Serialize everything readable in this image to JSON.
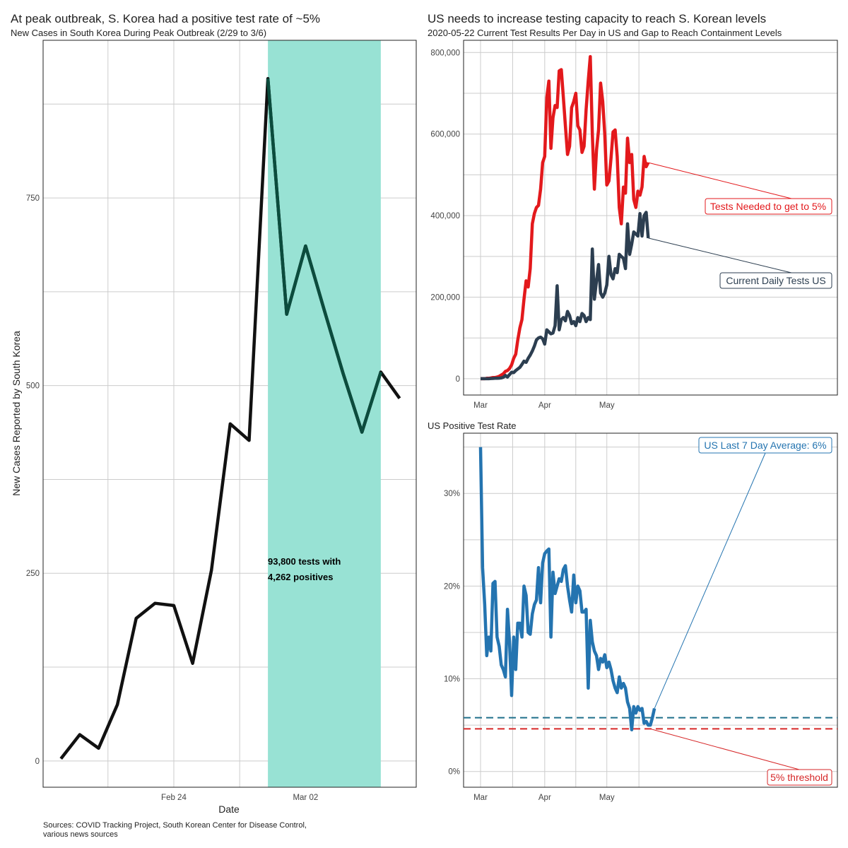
{
  "left": {
    "title": "At peak outbreak, S. Korea had a positive test rate of ~5%",
    "subtitle": "New Cases in South Korea During Peak Outbreak (2/29 to 3/6)",
    "xlabel": "Date",
    "ylabel": "New Cases Reported by South Korea",
    "annotation_line1": "93,800 tests with",
    "annotation_line2": "4,262 positives",
    "caption_line1": "Sources: COVID Tracking Project, South Korean Center for Disease Control,",
    "caption_line2": "various news sources",
    "highlight_color": "#98e2d4"
  },
  "top_right": {
    "title": "US needs to increase testing capacity to reach S. Korean levels",
    "subtitle": "2020-05-22 Current Test Results Per Day in US and Gap to Reach Containment Levels",
    "label_needed": "Tests Needed to get to 5%",
    "label_current": "Current Daily Tests US",
    "color_needed": "#e3191c",
    "color_current": "#2c3e50"
  },
  "bottom_right": {
    "title": "US Positive Test Rate",
    "label_avg": "US Last 7 Day Average: 6%",
    "label_threshold": "5% threshold",
    "color_rate": "#2474b0",
    "color_threshold": "#d62728"
  },
  "chart_data": [
    {
      "type": "line",
      "x": [
        "2020-02-18",
        "2020-02-19",
        "2020-02-20",
        "2020-02-21",
        "2020-02-22",
        "2020-02-23",
        "2020-02-24",
        "2020-02-25",
        "2020-02-26",
        "2020-02-27",
        "2020-02-28",
        "2020-02-29",
        "2020-03-01",
        "2020-03-02",
        "2020-03-03",
        "2020-03-04",
        "2020-03-05",
        "2020-03-06",
        "2020-03-07"
      ],
      "values": [
        3,
        35,
        17,
        75,
        190,
        210,
        207,
        130,
        254,
        449,
        427,
        909,
        595,
        686,
        600,
        516,
        438,
        518,
        483
      ],
      "ylim": [
        -35,
        960
      ],
      "yticks": [
        0,
        250,
        500,
        750
      ],
      "xticks": [
        "Feb 24",
        "Mar 02"
      ],
      "highlight": [
        "2020-02-29",
        "2020-03-06"
      ]
    },
    {
      "type": "line",
      "x_start": "2020-03-01",
      "x_end": "2020-05-22",
      "xticks": [
        "Mar",
        "Apr",
        "May"
      ],
      "yticks": [
        "0",
        "200,000",
        "400,000",
        "600,000",
        "800,000"
      ],
      "ylim": [
        -40000,
        830000
      ],
      "series": [
        {
          "name": "Tests Needed to get to 5%",
          "values": [
            0,
            0,
            0,
            1000,
            1000,
            2000,
            3000,
            3000,
            4000,
            6000,
            9000,
            12000,
            18000,
            20000,
            25000,
            34000,
            50000,
            60000,
            95000,
            125000,
            145000,
            195000,
            240000,
            225000,
            270000,
            380000,
            405000,
            420000,
            425000,
            465000,
            530000,
            545000,
            690000,
            730000,
            565000,
            640000,
            670000,
            665000,
            755000,
            758000,
            690000,
            620000,
            550000,
            570000,
            665000,
            680000,
            700000,
            620000,
            610000,
            555000,
            570000,
            660000,
            730000,
            790000,
            600000,
            465000,
            560000,
            610000,
            725000,
            680000,
            600000,
            475000,
            485000,
            540000,
            605000,
            610000,
            545000,
            420000,
            380000,
            470000,
            455000,
            590000,
            530000,
            550000,
            440000,
            420000,
            460000,
            450000,
            470000,
            545000,
            520000,
            530000
          ]
        },
        {
          "name": "Current Daily Tests US",
          "values": [
            0,
            0,
            0,
            0,
            0,
            500,
            800,
            1000,
            1200,
            1500,
            2000,
            3500,
            8000,
            4000,
            10000,
            16000,
            15000,
            20000,
            24000,
            28000,
            35000,
            43000,
            40000,
            50000,
            58000,
            68000,
            80000,
            95000,
            100000,
            102000,
            98000,
            85000,
            120000,
            115000,
            110000,
            112000,
            130000,
            228000,
            120000,
            145000,
            150000,
            142000,
            165000,
            155000,
            135000,
            140000,
            130000,
            150000,
            140000,
            160000,
            155000,
            140000,
            150000,
            145000,
            318000,
            195000,
            240000,
            280000,
            210000,
            200000,
            210000,
            230000,
            300000,
            255000,
            245000,
            270000,
            260000,
            305000,
            300000,
            295000,
            270000,
            380000,
            305000,
            330000,
            360000,
            355000,
            350000,
            405000,
            350000,
            400000,
            408000,
            345000
          ]
        }
      ]
    },
    {
      "type": "line",
      "x_start": "2020-03-01",
      "x_end": "2020-05-22",
      "xticks": [
        "Mar",
        "Apr",
        "May"
      ],
      "yticks": [
        "0%",
        "10%",
        "20%",
        "30%"
      ],
      "ylim": [
        -1.7,
        36.5
      ],
      "series": [
        {
          "name": "US Positive Test Rate",
          "values": [
            35,
            22,
            18,
            12.5,
            14.5,
            13,
            20.3,
            20.5,
            14.5,
            13.5,
            11.5,
            11,
            10.2,
            17.5,
            14,
            8.2,
            14.5,
            11,
            16,
            16,
            14.5,
            20,
            19,
            15,
            14.8,
            17,
            18,
            18.5,
            22,
            18.2,
            22.5,
            23.5,
            23.8,
            24,
            14.5,
            21.5,
            19.2,
            20,
            20.8,
            20.5,
            21.8,
            22.2,
            20,
            18.5,
            17.2,
            21.2,
            18.2,
            20,
            19.5,
            17.2,
            17.2,
            17.5,
            9,
            16.3,
            14,
            13,
            12.5,
            11,
            12.2,
            11.8,
            12.6,
            11.2,
            11.8,
            11,
            9.8,
            9,
            8.5,
            10.2,
            9,
            9.5,
            9,
            7.5,
            6.8,
            4.5,
            7,
            6.3,
            7,
            6.6,
            6.8,
            5.2,
            5.4,
            5,
            5,
            5.8,
            6.8
          ]
        }
      ],
      "reference_lines": [
        {
          "name": "US Last 7 Day Average: 6%",
          "value": 5.8
        },
        {
          "name": "5% threshold",
          "value": 4.6
        }
      ]
    }
  ]
}
